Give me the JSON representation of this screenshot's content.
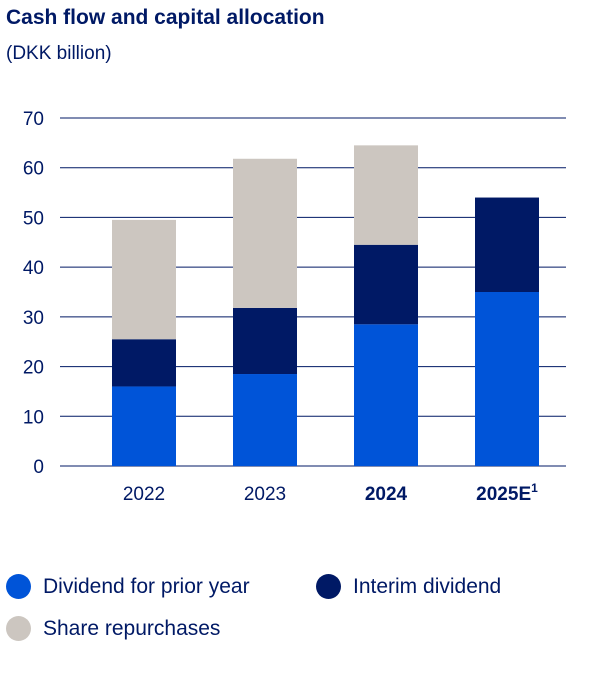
{
  "title": "Cash flow and capital allocation",
  "subtitle": "(DKK billion)",
  "colors": {
    "dividend": "#0054D8",
    "interim": "#001965",
    "repurchase": "#CCC6C0",
    "grid": "#001965",
    "text": "#001965"
  },
  "legend": [
    {
      "label": "Dividend for prior year",
      "color": "#0054D8"
    },
    {
      "label": "Interim dividend",
      "color": "#001965"
    },
    {
      "label": "Share repurchases",
      "color": "#CCC6C0"
    }
  ],
  "chart_data": {
    "type": "bar",
    "stacked": true,
    "title": "Cash flow and capital allocation",
    "subtitle": "(DKK billion)",
    "categories": [
      "2022",
      "2023",
      "2024",
      "2025E"
    ],
    "category_superscripts": [
      "",
      "",
      "",
      "1"
    ],
    "category_bold": [
      false,
      false,
      true,
      true
    ],
    "series": [
      {
        "name": "Dividend for prior year",
        "color": "#0054D8",
        "values": [
          16,
          18.5,
          28.5,
          35
        ]
      },
      {
        "name": "Interim dividend",
        "color": "#001965",
        "values": [
          9.5,
          13.3,
          16,
          19
        ]
      },
      {
        "name": "Share repurchases",
        "color": "#CCC6C0",
        "values": [
          24,
          30,
          20,
          0
        ]
      }
    ],
    "ylim": [
      0,
      70
    ],
    "yticks": [
      0,
      10,
      20,
      30,
      40,
      50,
      60,
      70
    ],
    "grid": true,
    "legend_position": "bottom"
  }
}
